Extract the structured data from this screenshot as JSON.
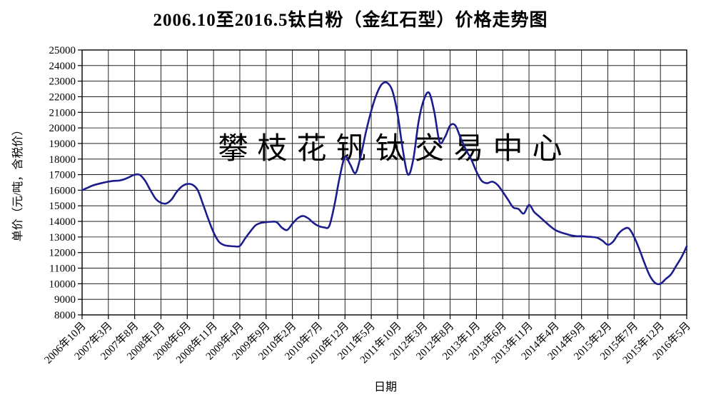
{
  "title": "2006.10至2016.5钛白粉（金红石型）价格走势图",
  "watermark": {
    "text": "攀枝花钒钛交易中心",
    "color": "#bcbcdf"
  },
  "colors": {
    "line": "#1c1c8f",
    "grid": "#000000",
    "axis": "#000000",
    "background": "#ffffff"
  },
  "chart_data": {
    "type": "line",
    "title": "2006.10至2016.5钛白粉（金红石型）价格走势图",
    "xlabel": "日期",
    "ylabel": "单价（元/吨，含税价）",
    "ylim": [
      8000,
      25000
    ],
    "y_tick_step": 1000,
    "y_tick_labels": [
      "8000",
      "9000",
      "10000",
      "11000",
      "12000",
      "13000",
      "14000",
      "15000",
      "16000",
      "17000",
      "18000",
      "19000",
      "20000",
      "21000",
      "22000",
      "23000",
      "24000",
      "25000"
    ],
    "x_tick_labels": [
      "2006年10月",
      "2007年3月",
      "2007年8月",
      "2008年1月",
      "2008年6月",
      "2008年11月",
      "2009年4月",
      "2009年9月",
      "2010年2月",
      "2010年7月",
      "2010年12月",
      "2011年5月",
      "2011年10月",
      "2012年3月",
      "2012年8月",
      "2013年1月",
      "2013年6月",
      "2013年11月",
      "2014年4月",
      "2014年9月",
      "2015年2月",
      "2015年7月",
      "2015年12月",
      "2016年5月"
    ],
    "x_tick_every": 5,
    "n_points": 116,
    "grid": true,
    "legend": false,
    "series": [
      {
        "name": "钛白粉（金红石型）价格",
        "color": "#1c1c8f",
        "values": [
          16000,
          16150,
          16300,
          16400,
          16480,
          16550,
          16600,
          16620,
          16700,
          16850,
          17000,
          16980,
          16600,
          16000,
          15450,
          15200,
          15150,
          15400,
          15900,
          16250,
          16400,
          16350,
          16000,
          15100,
          14150,
          13300,
          12700,
          12480,
          12420,
          12400,
          12420,
          12900,
          13350,
          13750,
          13900,
          13950,
          13980,
          13950,
          13600,
          13450,
          13850,
          14200,
          14350,
          14200,
          13900,
          13700,
          13620,
          13700,
          15050,
          16850,
          18150,
          17650,
          17100,
          18200,
          19750,
          21100,
          22150,
          22800,
          22900,
          22400,
          20900,
          18600,
          17000,
          18000,
          20400,
          21800,
          22250,
          21000,
          19100,
          19400,
          20150,
          20150,
          19350,
          18600,
          18000,
          17200,
          16600,
          16450,
          16550,
          16350,
          15900,
          15400,
          14900,
          14800,
          14500,
          15050,
          14600,
          14300,
          14000,
          13700,
          13450,
          13300,
          13200,
          13100,
          13050,
          13050,
          13020,
          13000,
          12950,
          12750,
          12500,
          12700,
          13200,
          13500,
          13550,
          13000,
          12200,
          11300,
          10500,
          10050,
          10000,
          10300,
          10600,
          11150,
          11700,
          12400
        ]
      }
    ]
  }
}
